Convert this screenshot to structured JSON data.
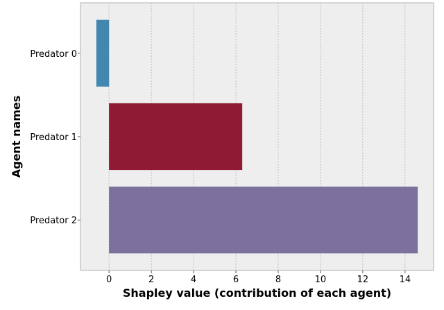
{
  "chart_data": {
    "type": "bar",
    "orientation": "horizontal",
    "title": "",
    "xlabel": "Shapley value (contribution of each agent)",
    "ylabel": "Agent names",
    "categories": [
      "Predator 0",
      "Predator 1",
      "Predator 2"
    ],
    "values": [
      -0.6,
      6.3,
      14.6
    ],
    "colors": [
      "#4287b0",
      "#8f1a33",
      "#7b709e"
    ],
    "xlim": [
      -1.35,
      15.35
    ],
    "xticks": [
      "0",
      "2",
      "4",
      "6",
      "8",
      "10",
      "12",
      "14"
    ],
    "grid": true,
    "background": "#eeeeee"
  }
}
